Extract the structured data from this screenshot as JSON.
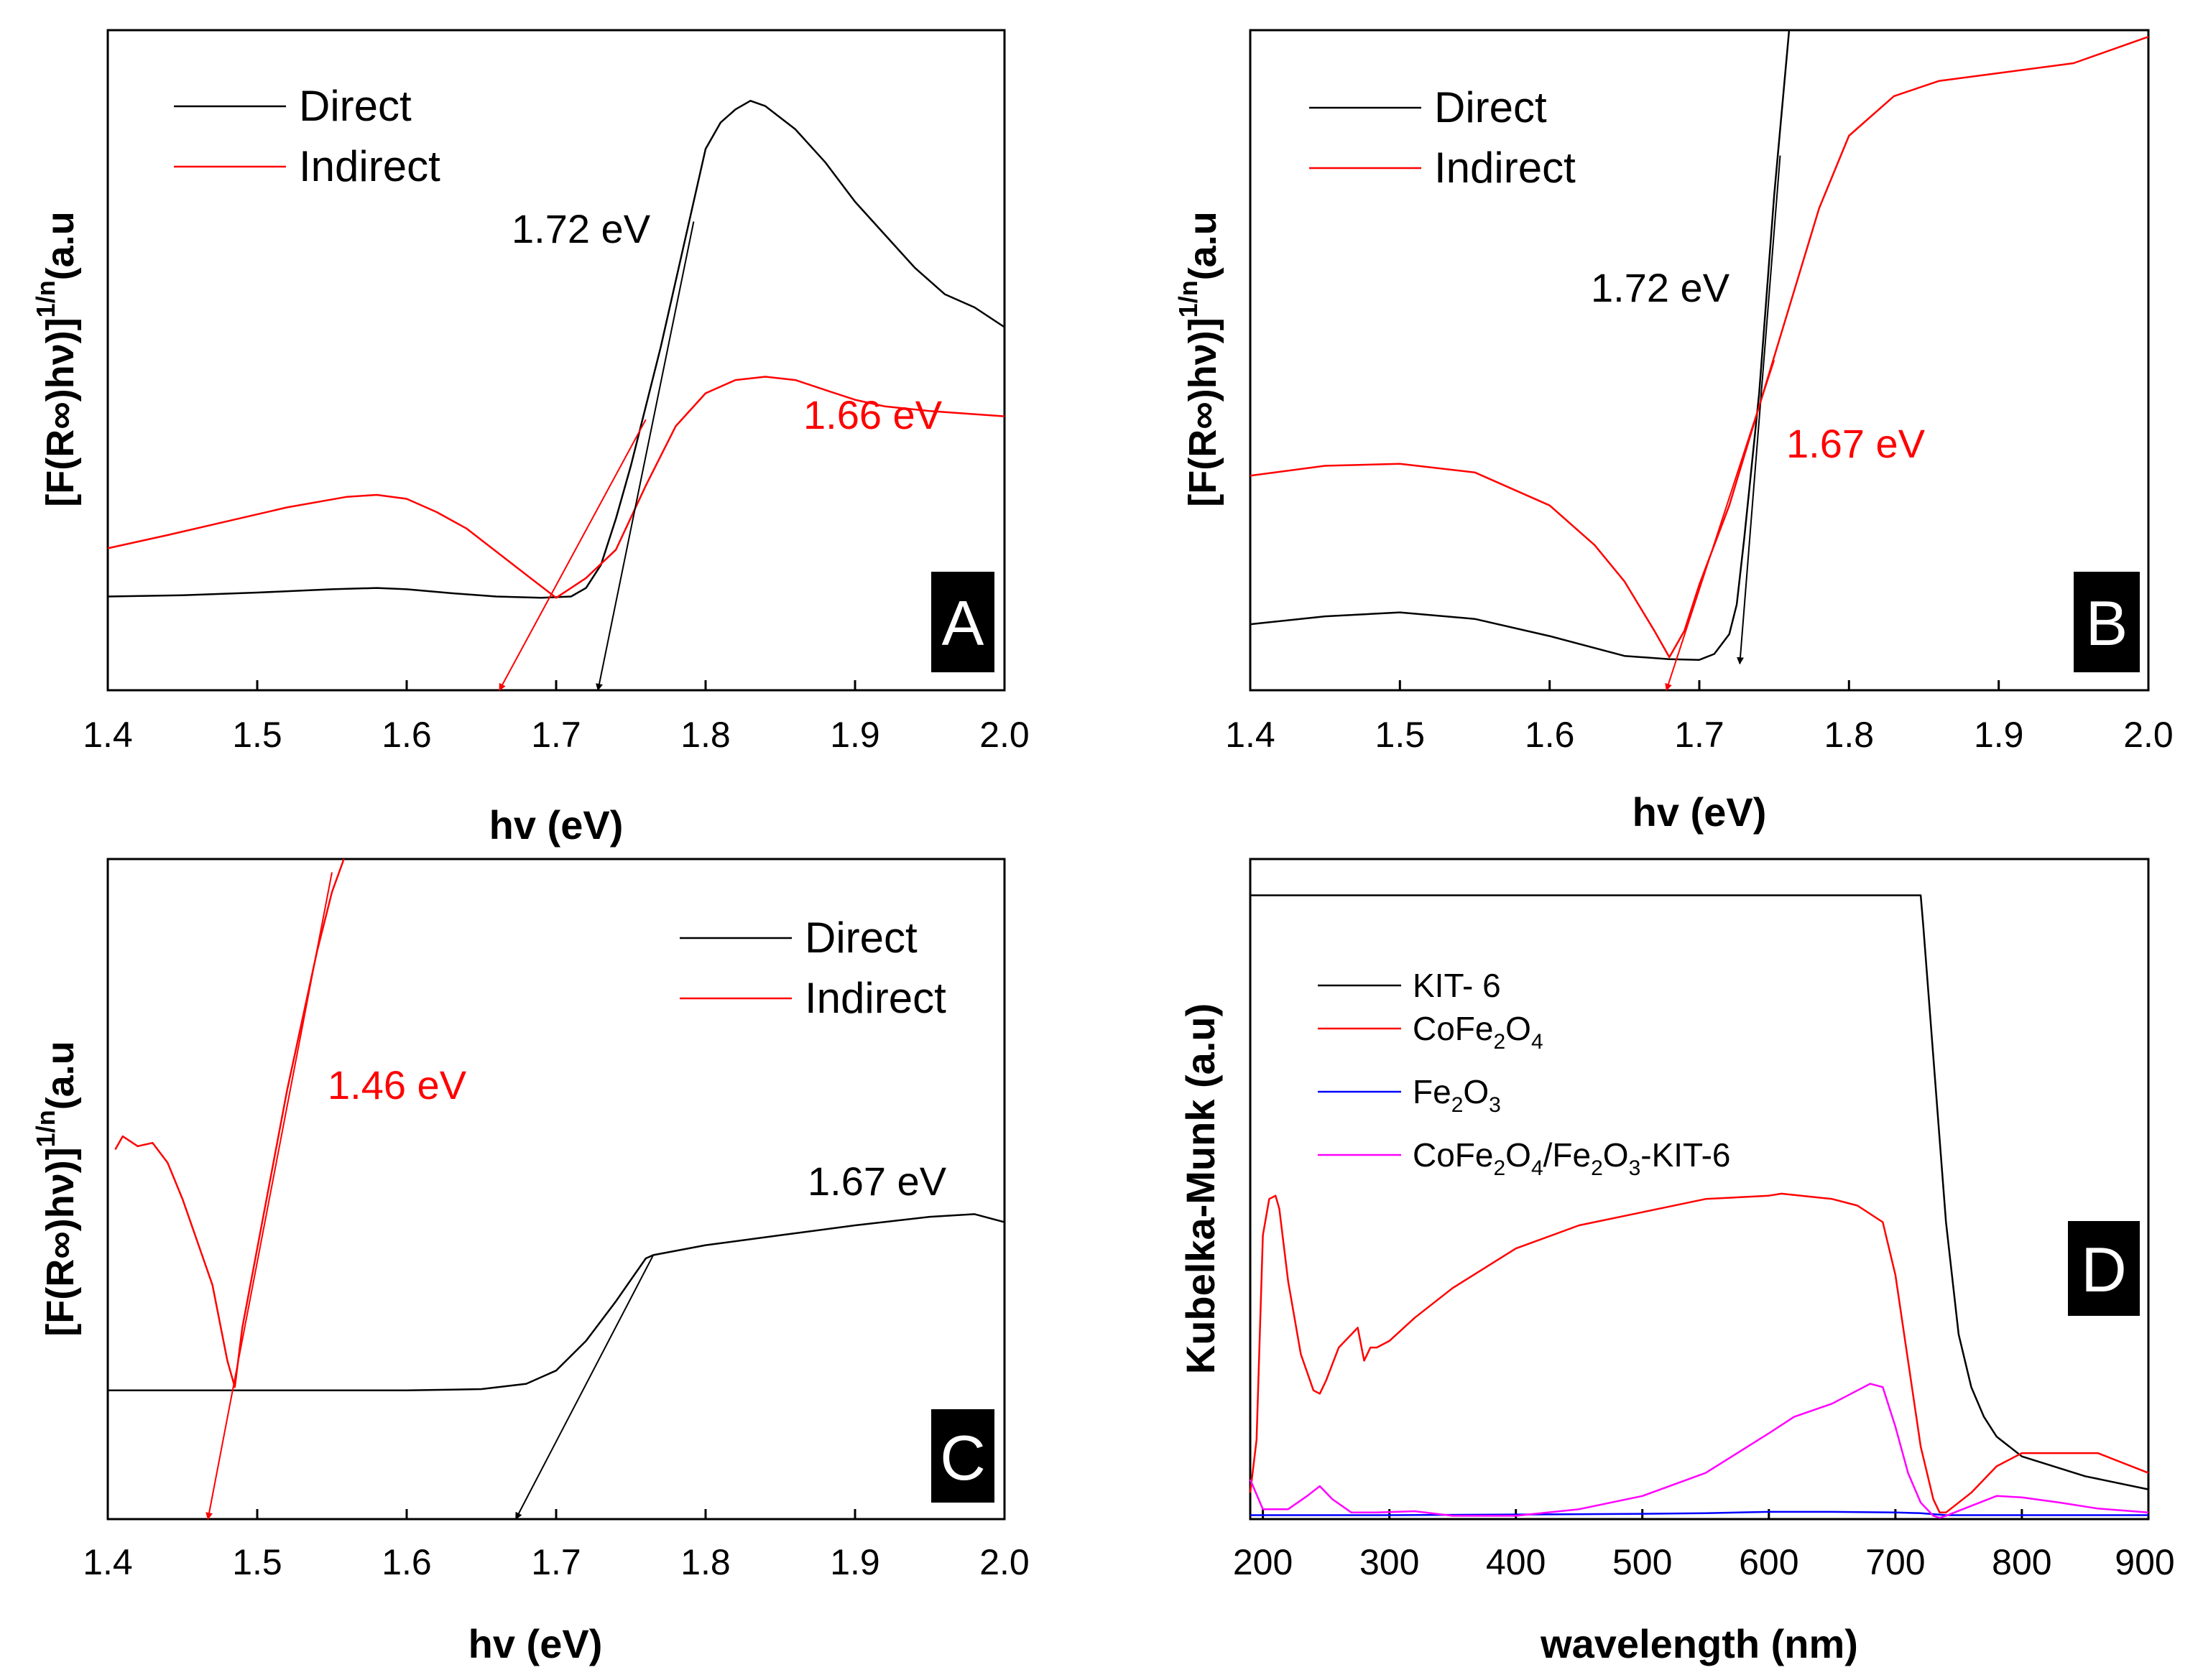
{
  "colors": {
    "direct": "#000000",
    "indirect": "#ff0000",
    "kit6": "#000000",
    "cofe2o4": "#ff0000",
    "fe2o3": "#0000ff",
    "composite": "#ff00ff"
  },
  "chart_data": [
    {
      "panel": "A",
      "type": "line",
      "xlabel": "hv (eV)",
      "ylabel_main": "[F(R∞)hν)]",
      "ylabel_sup": "1/n",
      "ylabel_tail": "(a.u",
      "xlim": [
        1.4,
        2.0
      ],
      "ylim": [
        0,
        100
      ],
      "xticks": [
        "1.4",
        "1.5",
        "1.6",
        "1.7",
        "1.8",
        "1.9",
        "2.0"
      ],
      "legend": [
        "Direct",
        "Indirect"
      ],
      "annotations": [
        {
          "text": "1.72 eV",
          "color": "black"
        },
        {
          "text": "1.66 eV",
          "color": "red"
        }
      ],
      "series": [
        {
          "name": "Direct",
          "x": [
            1.4,
            1.45,
            1.5,
            1.55,
            1.58,
            1.6,
            1.63,
            1.66,
            1.69,
            1.71,
            1.72,
            1.73,
            1.74,
            1.75,
            1.76,
            1.77,
            1.78,
            1.79,
            1.8,
            1.81,
            1.82,
            1.83,
            1.84,
            1.86,
            1.88,
            1.9,
            1.92,
            1.94,
            1.96,
            1.98,
            2.0
          ],
          "y": [
            14.2,
            14.4,
            14.8,
            15.3,
            15.5,
            15.3,
            14.7,
            14.2,
            14.0,
            14.2,
            15.5,
            19,
            26,
            34,
            43,
            52,
            62,
            72,
            82,
            86,
            88,
            89.3,
            88.5,
            85,
            80,
            74,
            69,
            64,
            60,
            58,
            55
          ]
        },
        {
          "name": "Indirect",
          "x": [
            1.4,
            1.44,
            1.48,
            1.52,
            1.56,
            1.58,
            1.6,
            1.62,
            1.64,
            1.66,
            1.68,
            1.7,
            1.72,
            1.74,
            1.76,
            1.78,
            1.8,
            1.82,
            1.84,
            1.86,
            1.88,
            1.9,
            1.92,
            1.95,
            2.0
          ],
          "y": [
            21.5,
            23.5,
            25.6,
            27.7,
            29.3,
            29.6,
            29,
            27,
            24.5,
            21,
            17.5,
            14,
            17,
            21.3,
            31,
            40,
            45,
            47,
            47.5,
            47,
            45.5,
            44,
            43,
            42.3,
            41.5
          ]
        },
        {
          "name": "Direct tangent",
          "x": [
            1.728,
            1.792
          ],
          "y": [
            0,
            71
          ]
        },
        {
          "name": "Indirect tangent",
          "x": [
            1.662,
            1.76
          ],
          "y": [
            0,
            41
          ]
        }
      ]
    },
    {
      "panel": "B",
      "type": "line",
      "xlabel": "hv (eV)",
      "ylabel_main": "[F(R∞)hν)]",
      "ylabel_sup": "1/n",
      "ylabel_tail": "(a.u",
      "xlim": [
        1.4,
        2.0
      ],
      "ylim": [
        0,
        100
      ],
      "xticks": [
        "1.4",
        "1.5",
        "1.6",
        "1.7",
        "1.8",
        "1.9",
        "2.0"
      ],
      "legend": [
        "Direct",
        "Indirect"
      ],
      "annotations": [
        {
          "text": "1.72 eV",
          "color": "black"
        },
        {
          "text": "1.67 eV",
          "color": "red"
        }
      ],
      "series": [
        {
          "name": "Direct",
          "x": [
            1.4,
            1.45,
            1.5,
            1.55,
            1.6,
            1.65,
            1.68,
            1.7,
            1.71,
            1.72,
            1.725,
            1.73,
            1.74,
            1.75,
            1.76
          ],
          "y": [
            10,
            11.2,
            11.8,
            10.8,
            8.2,
            5.2,
            4.7,
            4.6,
            5.5,
            8.5,
            13,
            23,
            45,
            75,
            100
          ]
        },
        {
          "name": "Indirect",
          "x": [
            1.4,
            1.45,
            1.5,
            1.55,
            1.6,
            1.63,
            1.65,
            1.67,
            1.68,
            1.69,
            1.7,
            1.72,
            1.74,
            1.76,
            1.78,
            1.8,
            1.83,
            1.86,
            1.9,
            1.95,
            2.0
          ],
          "y": [
            32.5,
            34,
            34.3,
            33,
            28,
            22,
            16.5,
            9,
            5,
            9,
            16,
            28,
            43,
            58,
            73,
            84,
            90,
            92.3,
            93.5,
            95,
            99
          ]
        },
        {
          "name": "Direct tangent",
          "x": [
            1.727,
            1.754
          ],
          "y": [
            4,
            81
          ]
        },
        {
          "name": "Indirect tangent",
          "x": [
            1.678,
            1.75
          ],
          "y": [
            0,
            50
          ]
        }
      ]
    },
    {
      "panel": "C",
      "type": "line",
      "xlabel": "hv (eV)",
      "ylabel_main": "[F(R∞)hν)]",
      "ylabel_sup": "1/n",
      "ylabel_tail": "(a.u",
      "xlim": [
        1.4,
        2.0
      ],
      "ylim": [
        0,
        100
      ],
      "xticks": [
        "1.4",
        "1.5",
        "1.6",
        "1.7",
        "1.8",
        "1.9",
        "2.0"
      ],
      "legend": [
        "Direct",
        "Indirect"
      ],
      "annotations": [
        {
          "text": "1.46 eV",
          "color": "red"
        },
        {
          "text": "1.67 eV",
          "color": "black"
        }
      ],
      "series": [
        {
          "name": "Direct",
          "x": [
            1.4,
            1.5,
            1.6,
            1.65,
            1.68,
            1.7,
            1.72,
            1.74,
            1.76,
            1.765,
            1.8,
            1.85,
            1.9,
            1.95,
            1.98,
            2.0
          ],
          "y": [
            19.5,
            19.5,
            19.5,
            19.7,
            20.5,
            22.5,
            27,
            33,
            39.5,
            40,
            41.5,
            43,
            44.5,
            45.8,
            46.2,
            45
          ]
        },
        {
          "name": "Indirect",
          "x": [
            1.405,
            1.41,
            1.42,
            1.43,
            1.44,
            1.45,
            1.46,
            1.47,
            1.48,
            1.485,
            1.49,
            1.5,
            1.52,
            1.54,
            1.55,
            1.558
          ],
          "y": [
            56,
            58,
            56.5,
            57,
            54,
            48.5,
            42,
            35.5,
            24,
            20,
            29,
            41,
            65,
            86,
            95,
            100
          ]
        },
        {
          "name": "Direct tangent",
          "x": [
            1.673,
            1.765
          ],
          "y": [
            0,
            40
          ]
        },
        {
          "name": "Indirect tangent",
          "x": [
            1.467,
            1.55
          ],
          "y": [
            0,
            98
          ]
        }
      ]
    },
    {
      "panel": "D",
      "type": "line",
      "xlabel": "wavelength (nm)",
      "ylabel": "Kubelka-Munk (a.u)",
      "xlim": [
        190,
        900
      ],
      "ylim": [
        0,
        100
      ],
      "xticks": [
        "200",
        "300",
        "400",
        "500",
        "600",
        "700",
        "800",
        "900"
      ],
      "legend": [
        "KIT- 6",
        "CoFe2O4",
        "Fe2O3",
        "CoFe2O4/Fe2O3-KIT-6"
      ],
      "series": [
        {
          "name": "KIT- 6",
          "x": [
            190,
            720,
            722,
            730,
            740,
            750,
            760,
            770,
            780,
            800,
            850,
            900
          ],
          "y": [
            94.5,
            94.5,
            90,
            70,
            45,
            28,
            20,
            15.5,
            12.5,
            9.5,
            6.5,
            4.5
          ]
        },
        {
          "name": "CoFe2O4",
          "x": [
            190,
            195,
            200,
            205,
            210,
            213,
            220,
            230,
            240,
            245,
            250,
            260,
            270,
            275,
            280,
            285,
            290,
            300,
            320,
            350,
            400,
            450,
            500,
            550,
            600,
            610,
            650,
            670,
            690,
            700,
            710,
            720,
            730,
            735,
            740,
            760,
            780,
            800,
            830,
            860,
            900
          ],
          "y": [
            4,
            12,
            43,
            48.5,
            49,
            47,
            36,
            25,
            19.5,
            19,
            21,
            26,
            28,
            29,
            24,
            26,
            26,
            27,
            30.5,
            35,
            41,
            44.5,
            46.5,
            48.5,
            49,
            49.3,
            48.5,
            47.5,
            45,
            37,
            24,
            11,
            3,
            1,
            1,
            4,
            8,
            10,
            10,
            10,
            7
          ]
        },
        {
          "name": "Fe2O3",
          "x": [
            190,
            300,
            400,
            500,
            550,
            600,
            650,
            700,
            720,
            740,
            800,
            900
          ],
          "y": [
            0.6,
            0.6,
            0.7,
            0.8,
            0.9,
            1.1,
            1.1,
            1.0,
            0.9,
            0.6,
            0.6,
            0.6
          ]
        },
        {
          "name": "CoFe2O4/Fe2O3-KIT-6",
          "x": [
            190,
            200,
            220,
            235,
            245,
            255,
            270,
            290,
            320,
            350,
            400,
            450,
            500,
            550,
            600,
            620,
            650,
            670,
            680,
            690,
            700,
            710,
            720,
            730,
            735,
            740,
            760,
            780,
            800,
            830,
            860,
            900
          ],
          "y": [
            6,
            1.5,
            1.5,
            3.5,
            5,
            3,
            1,
            1,
            1.2,
            0.5,
            0.5,
            1.5,
            3.5,
            7,
            13,
            15.5,
            17.5,
            19.5,
            20.5,
            20,
            14,
            7,
            2.5,
            0.5,
            0.2,
            0.5,
            2,
            3.5,
            3.3,
            2.5,
            1.6,
            1
          ]
        }
      ]
    }
  ],
  "panel_labels": [
    "A",
    "B",
    "C",
    "D"
  ]
}
